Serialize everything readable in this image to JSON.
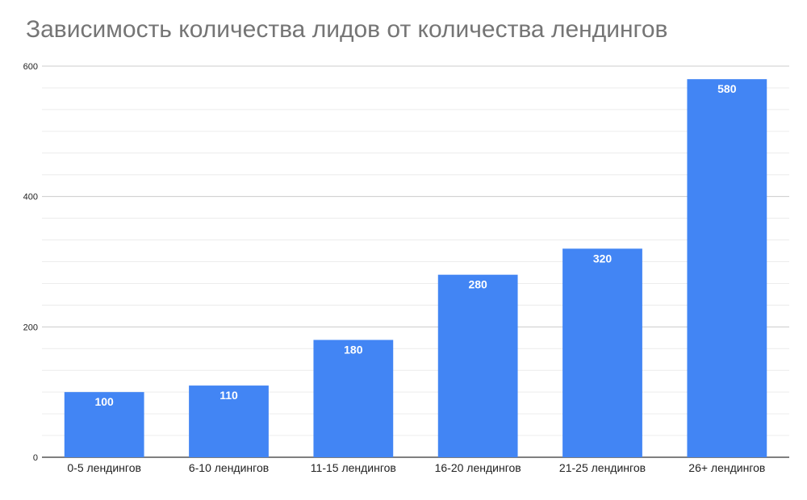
{
  "chart_data": {
    "type": "bar",
    "title": "Зависимость количества лидов от количества лендингов",
    "xlabel": "",
    "ylabel": "",
    "categories": [
      "0-5 лендингов",
      "6-10 лендингов",
      "11-15 лендингов",
      "16-20 лендингов",
      "21-25 лендингов",
      "26+ лендингов"
    ],
    "series": [
      {
        "values": [
          100,
          110,
          180,
          280,
          320,
          580
        ]
      }
    ],
    "data_labels": [
      "100",
      "110",
      "180",
      "280",
      "320",
      "580"
    ],
    "ylim": [
      0,
      600
    ],
    "y_ticks": [
      "0",
      "200",
      "400",
      "600"
    ],
    "grid": true,
    "legend": "none",
    "colors": {
      "bar": "#4285f4",
      "major_grid": "#cccccc",
      "minor_grid": "#ececec",
      "title": "#757575"
    }
  }
}
